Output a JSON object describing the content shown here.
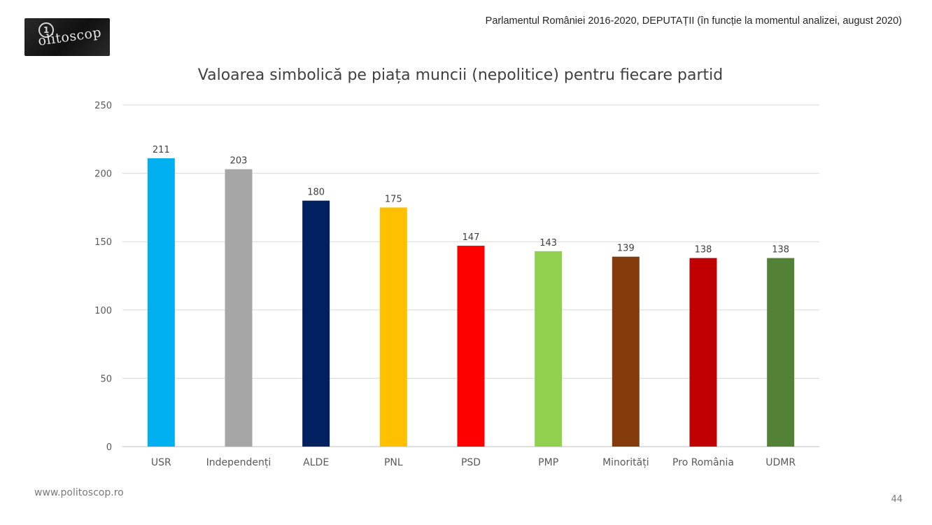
{
  "header": {
    "logo_text": "olitoscop",
    "logo_mark": "1",
    "context_line": "Parlamentul României 2016-2020, DEPUTAȚII (în funcție la momentul analizei, august 2020)"
  },
  "footer": {
    "url": "www.politoscop.ro",
    "page_number": "44"
  },
  "chart_data": {
    "type": "bar",
    "title": "Valoarea simbolică pe piața muncii (nepolitice) pentru fiecare partid",
    "xlabel": "",
    "ylabel": "",
    "ylim": [
      0,
      250
    ],
    "yticks": [
      0,
      50,
      100,
      150,
      200,
      250
    ],
    "grid": true,
    "legend": "none",
    "categories": [
      "USR",
      "Independenți",
      "ALDE",
      "PNL",
      "PSD",
      "PMP",
      "Minorități",
      "Pro România",
      "UDMR"
    ],
    "values": [
      211,
      203,
      180,
      175,
      147,
      143,
      139,
      138,
      138
    ],
    "data_labels": [
      "211",
      "203",
      "180",
      "175",
      "147",
      "143",
      "139",
      "138",
      "138"
    ],
    "colors": [
      "#00b0f0",
      "#a6a6a6",
      "#002060",
      "#ffc000",
      "#ff0000",
      "#92d050",
      "#843c0c",
      "#c00000",
      "#538135"
    ]
  }
}
